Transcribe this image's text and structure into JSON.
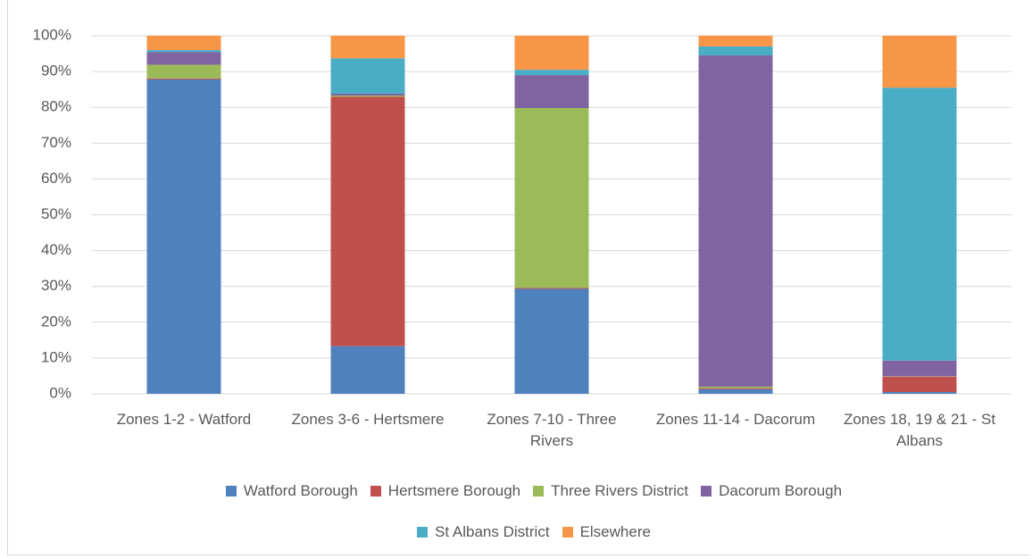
{
  "chart_data": {
    "type": "stacked_bar",
    "categories": [
      "Zones 1-2 - Watford",
      "Zones 3-6 - Hertsmere",
      "Zones 7-10 - Three Rivers",
      "Zones 11-14 - Dacorum",
      "Zones 18, 19 & 21 - St Albans"
    ],
    "series": [
      {
        "name": "Watford Borough",
        "color": "#4f81bd",
        "values": [
          87.8,
          13.3,
          29.3,
          1.3,
          0.5
        ]
      },
      {
        "name": "Hertsmere Borough",
        "color": "#c0504d",
        "values": [
          0.3,
          69.7,
          0.3,
          0.3,
          4.3
        ]
      },
      {
        "name": "Three Rivers District",
        "color": "#9bbb59",
        "values": [
          3.8,
          0.3,
          50.2,
          0.4,
          0.1
        ]
      },
      {
        "name": "Dacorum Borough",
        "color": "#8064a2",
        "values": [
          3.5,
          0.5,
          9.2,
          92.5,
          4.4
        ]
      },
      {
        "name": "St Albans District",
        "color": "#4bacc6",
        "values": [
          0.6,
          9.9,
          1.5,
          2.5,
          76.2
        ]
      },
      {
        "name": "Elsewhere",
        "color": "#f79646",
        "values": [
          4.0,
          6.3,
          9.5,
          3.0,
          14.5
        ]
      }
    ],
    "ylim": [
      0,
      100
    ],
    "yticks": [
      {
        "value": 0,
        "label": "0%"
      },
      {
        "value": 10,
        "label": "10%"
      },
      {
        "value": 20,
        "label": "20%"
      },
      {
        "value": 30,
        "label": "30%"
      },
      {
        "value": 40,
        "label": "40%"
      },
      {
        "value": 50,
        "label": "50%"
      },
      {
        "value": 60,
        "label": "60%"
      },
      {
        "value": 70,
        "label": "70%"
      },
      {
        "value": 80,
        "label": "80%"
      },
      {
        "value": 90,
        "label": "90%"
      },
      {
        "value": 100,
        "label": "100%"
      }
    ],
    "grid": true,
    "legend": "bottom"
  }
}
